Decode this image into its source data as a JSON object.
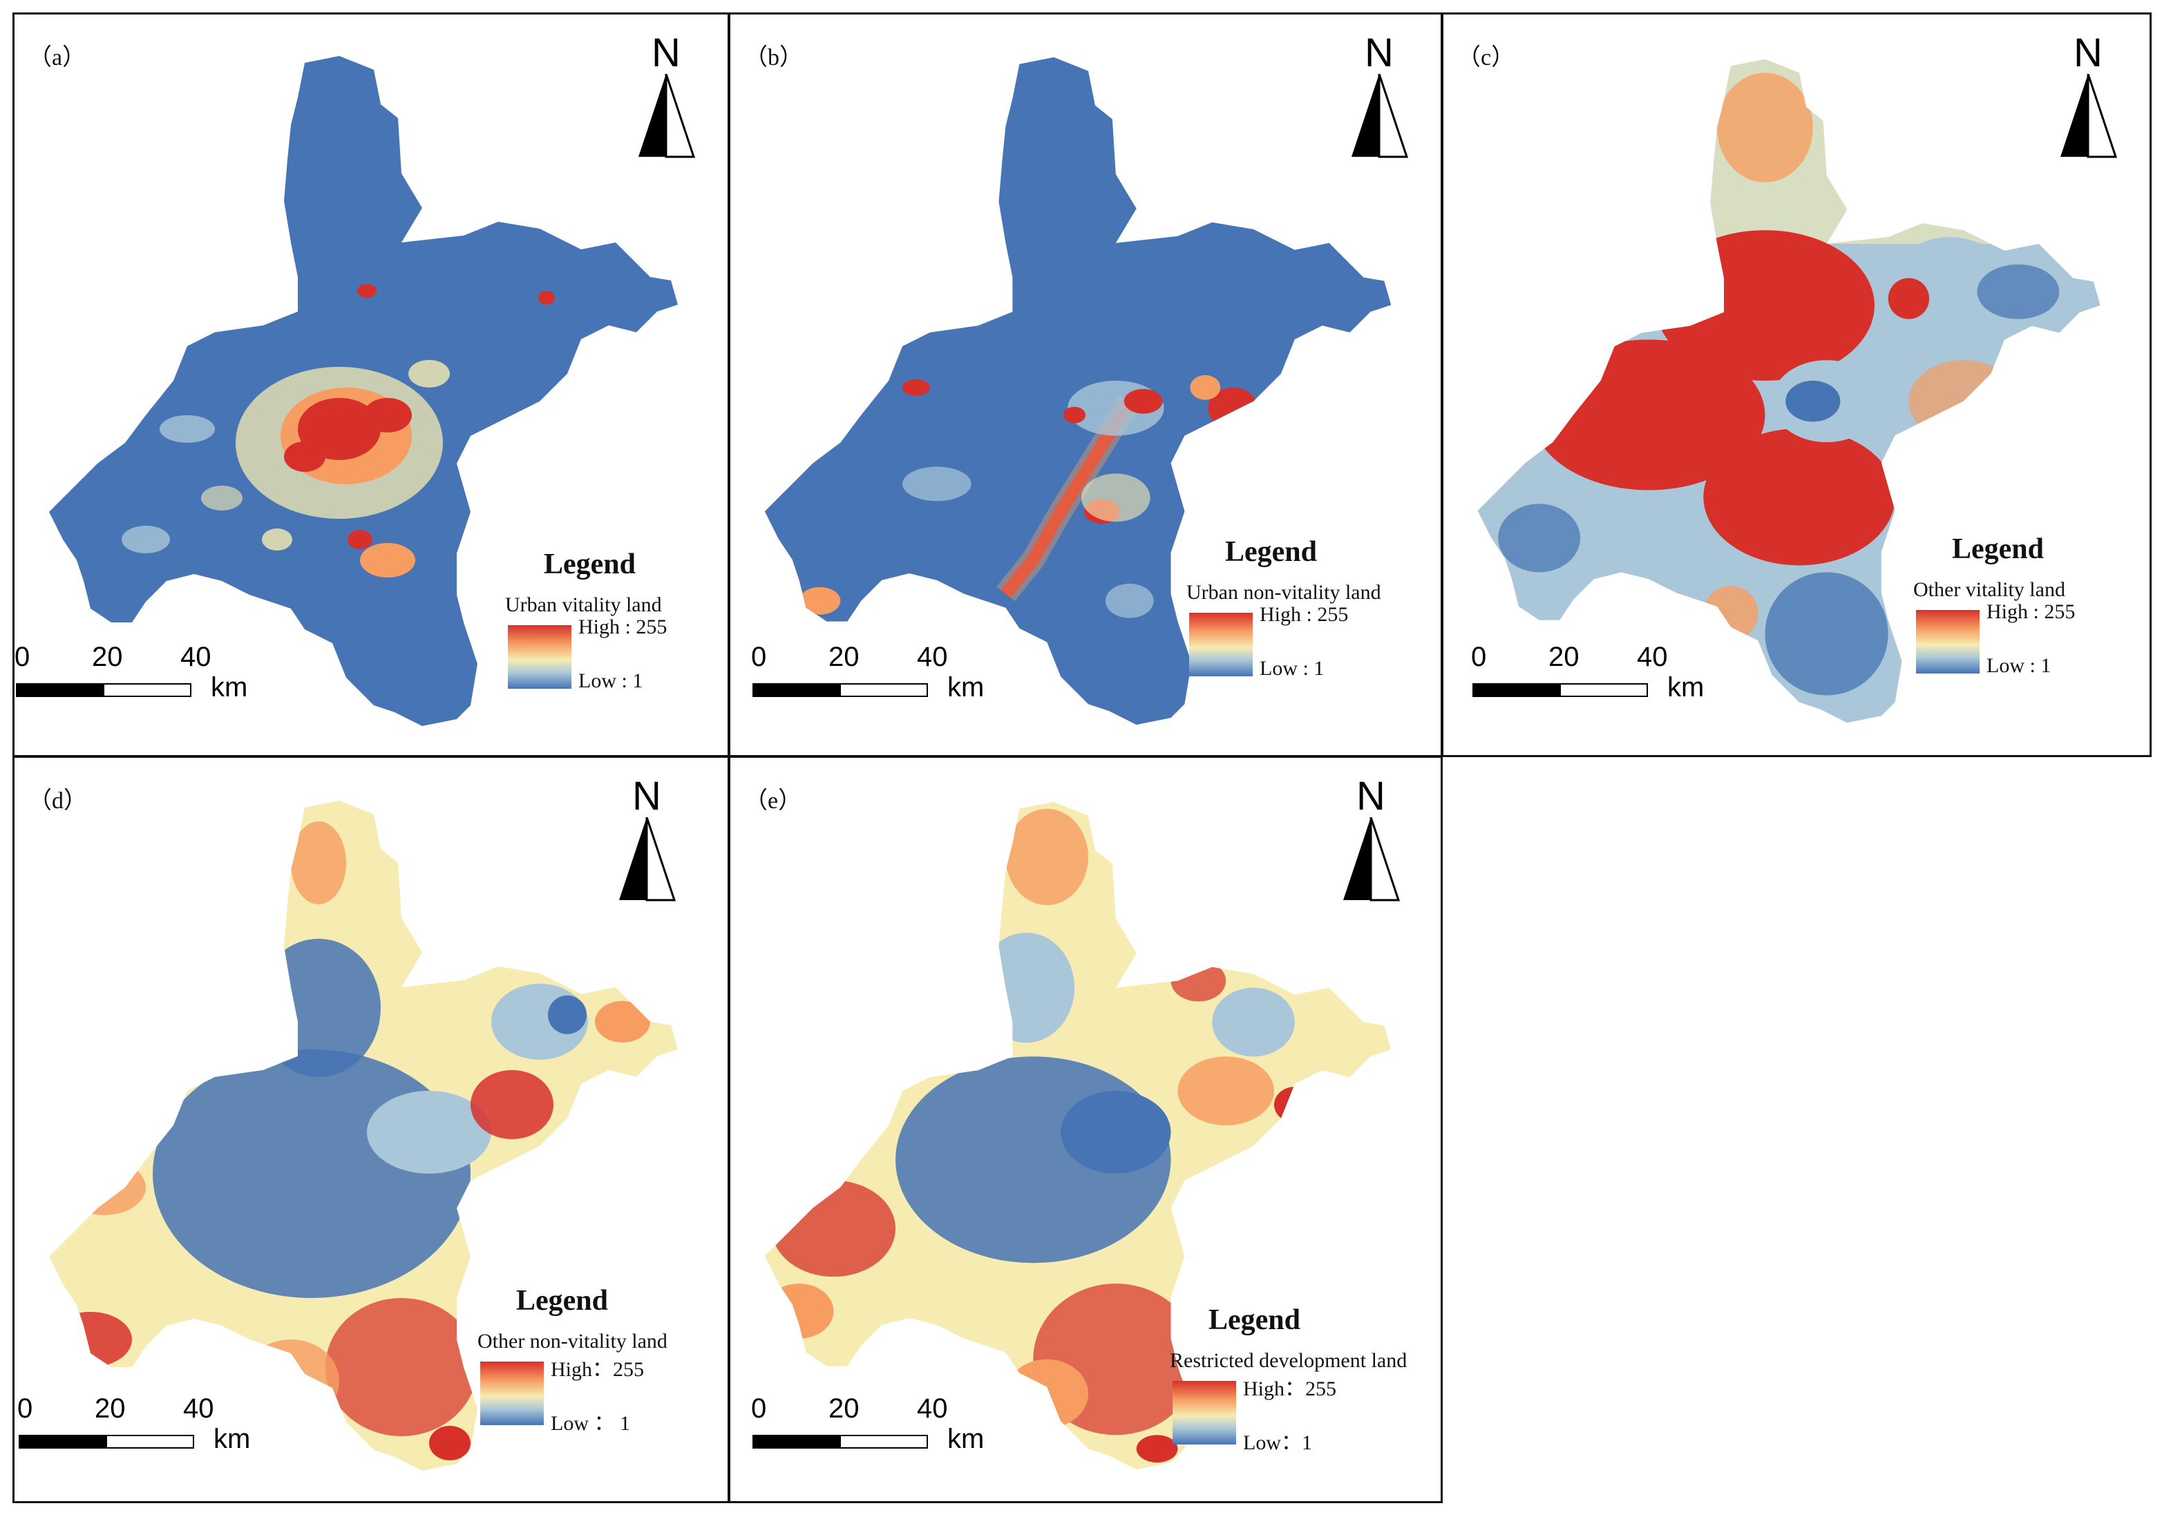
{
  "colors": {
    "high": "#d7302b",
    "mid": "#f6ecb2",
    "low": "#4674b4",
    "frame": "#111111"
  },
  "north_letter": "N",
  "scale": {
    "ticks": [
      "0",
      "20",
      "40"
    ],
    "unit": "km"
  },
  "legend_title": "Legend",
  "panels": {
    "a": {
      "label": "（a）",
      "layer": "Urban vitality land",
      "high": "High : 255",
      "low": "Low : 1",
      "pattern": "urban-core"
    },
    "b": {
      "label": "（b）",
      "layer": "Urban non-vitality land",
      "high": "High : 255",
      "low": "Low : 1",
      "pattern": "river-corridor"
    },
    "c": {
      "label": "（c）",
      "layer": "Other vitality land",
      "high": "High : 255",
      "low": "Low : 1",
      "pattern": "warm-ring"
    },
    "d": {
      "label": "（d）",
      "layer": "Other non-vitality land",
      "high": "High：255",
      "low": "Low ： 1",
      "pattern": "mixed-periphery"
    },
    "e": {
      "label": "（e）",
      "layer": "Restricted development land",
      "high": "High：255",
      "low": "Low：1",
      "pattern": "mixed-periphery"
    }
  }
}
